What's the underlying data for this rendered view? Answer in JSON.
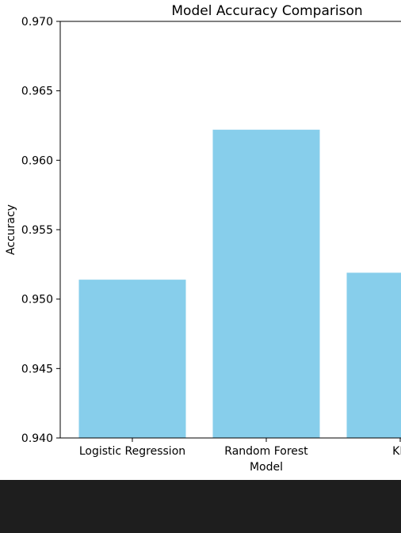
{
  "chart_data": {
    "type": "bar",
    "title": "Model Accuracy Comparison",
    "xlabel": "Model",
    "ylabel": "Accuracy",
    "categories": [
      "Logistic Regression",
      "Random Forest",
      "KN"
    ],
    "values": [
      0.9514,
      0.9622,
      0.9519
    ],
    "ylim": [
      0.94,
      0.97
    ],
    "yticks": [
      "0.940",
      "0.945",
      "0.950",
      "0.955",
      "0.960",
      "0.965",
      "0.970"
    ],
    "bar_color": "#87ceeb",
    "grid": false,
    "legend": "none"
  }
}
